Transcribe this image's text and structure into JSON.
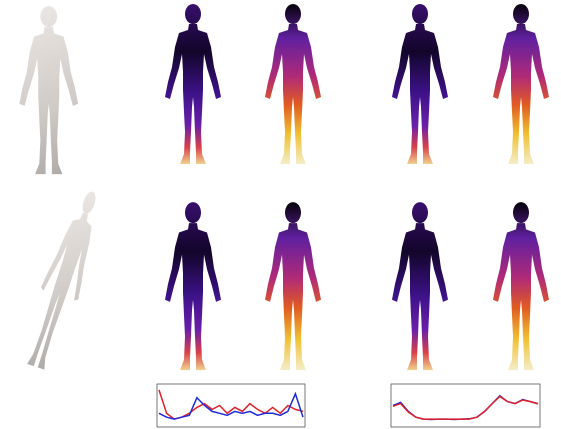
{
  "chart_data": [
    {
      "type": "line",
      "ylim": [
        0,
        1
      ],
      "series": [
        {
          "color": "#e0202a",
          "values": [
            0.9,
            0.3,
            0.15,
            0.2,
            0.3,
            0.45,
            0.55,
            0.4,
            0.5,
            0.3,
            0.45,
            0.35,
            0.55,
            0.4,
            0.3,
            0.45,
            0.3,
            0.5,
            0.4,
            0.35
          ]
        },
        {
          "color": "#1f2ad8",
          "values": [
            0.3,
            0.2,
            0.15,
            0.2,
            0.25,
            0.7,
            0.5,
            0.35,
            0.3,
            0.25,
            0.35,
            0.3,
            0.35,
            0.25,
            0.3,
            0.3,
            0.25,
            0.35,
            0.8,
            0.2
          ]
        }
      ]
    },
    {
      "type": "line",
      "ylim": [
        0,
        1
      ],
      "series": [
        {
          "color": "#1f2ad8",
          "values": [
            0.5,
            0.58,
            0.35,
            0.2,
            0.15,
            0.14,
            0.15,
            0.15,
            0.14,
            0.15,
            0.16,
            0.2,
            0.35,
            0.55,
            0.75,
            0.6,
            0.55,
            0.65,
            0.6,
            0.55
          ]
        },
        {
          "color": "#e0202a",
          "values": [
            0.48,
            0.55,
            0.33,
            0.2,
            0.15,
            0.15,
            0.15,
            0.15,
            0.15,
            0.15,
            0.15,
            0.2,
            0.35,
            0.55,
            0.73,
            0.6,
            0.55,
            0.64,
            0.6,
            0.54
          ]
        }
      ]
    }
  ]
}
